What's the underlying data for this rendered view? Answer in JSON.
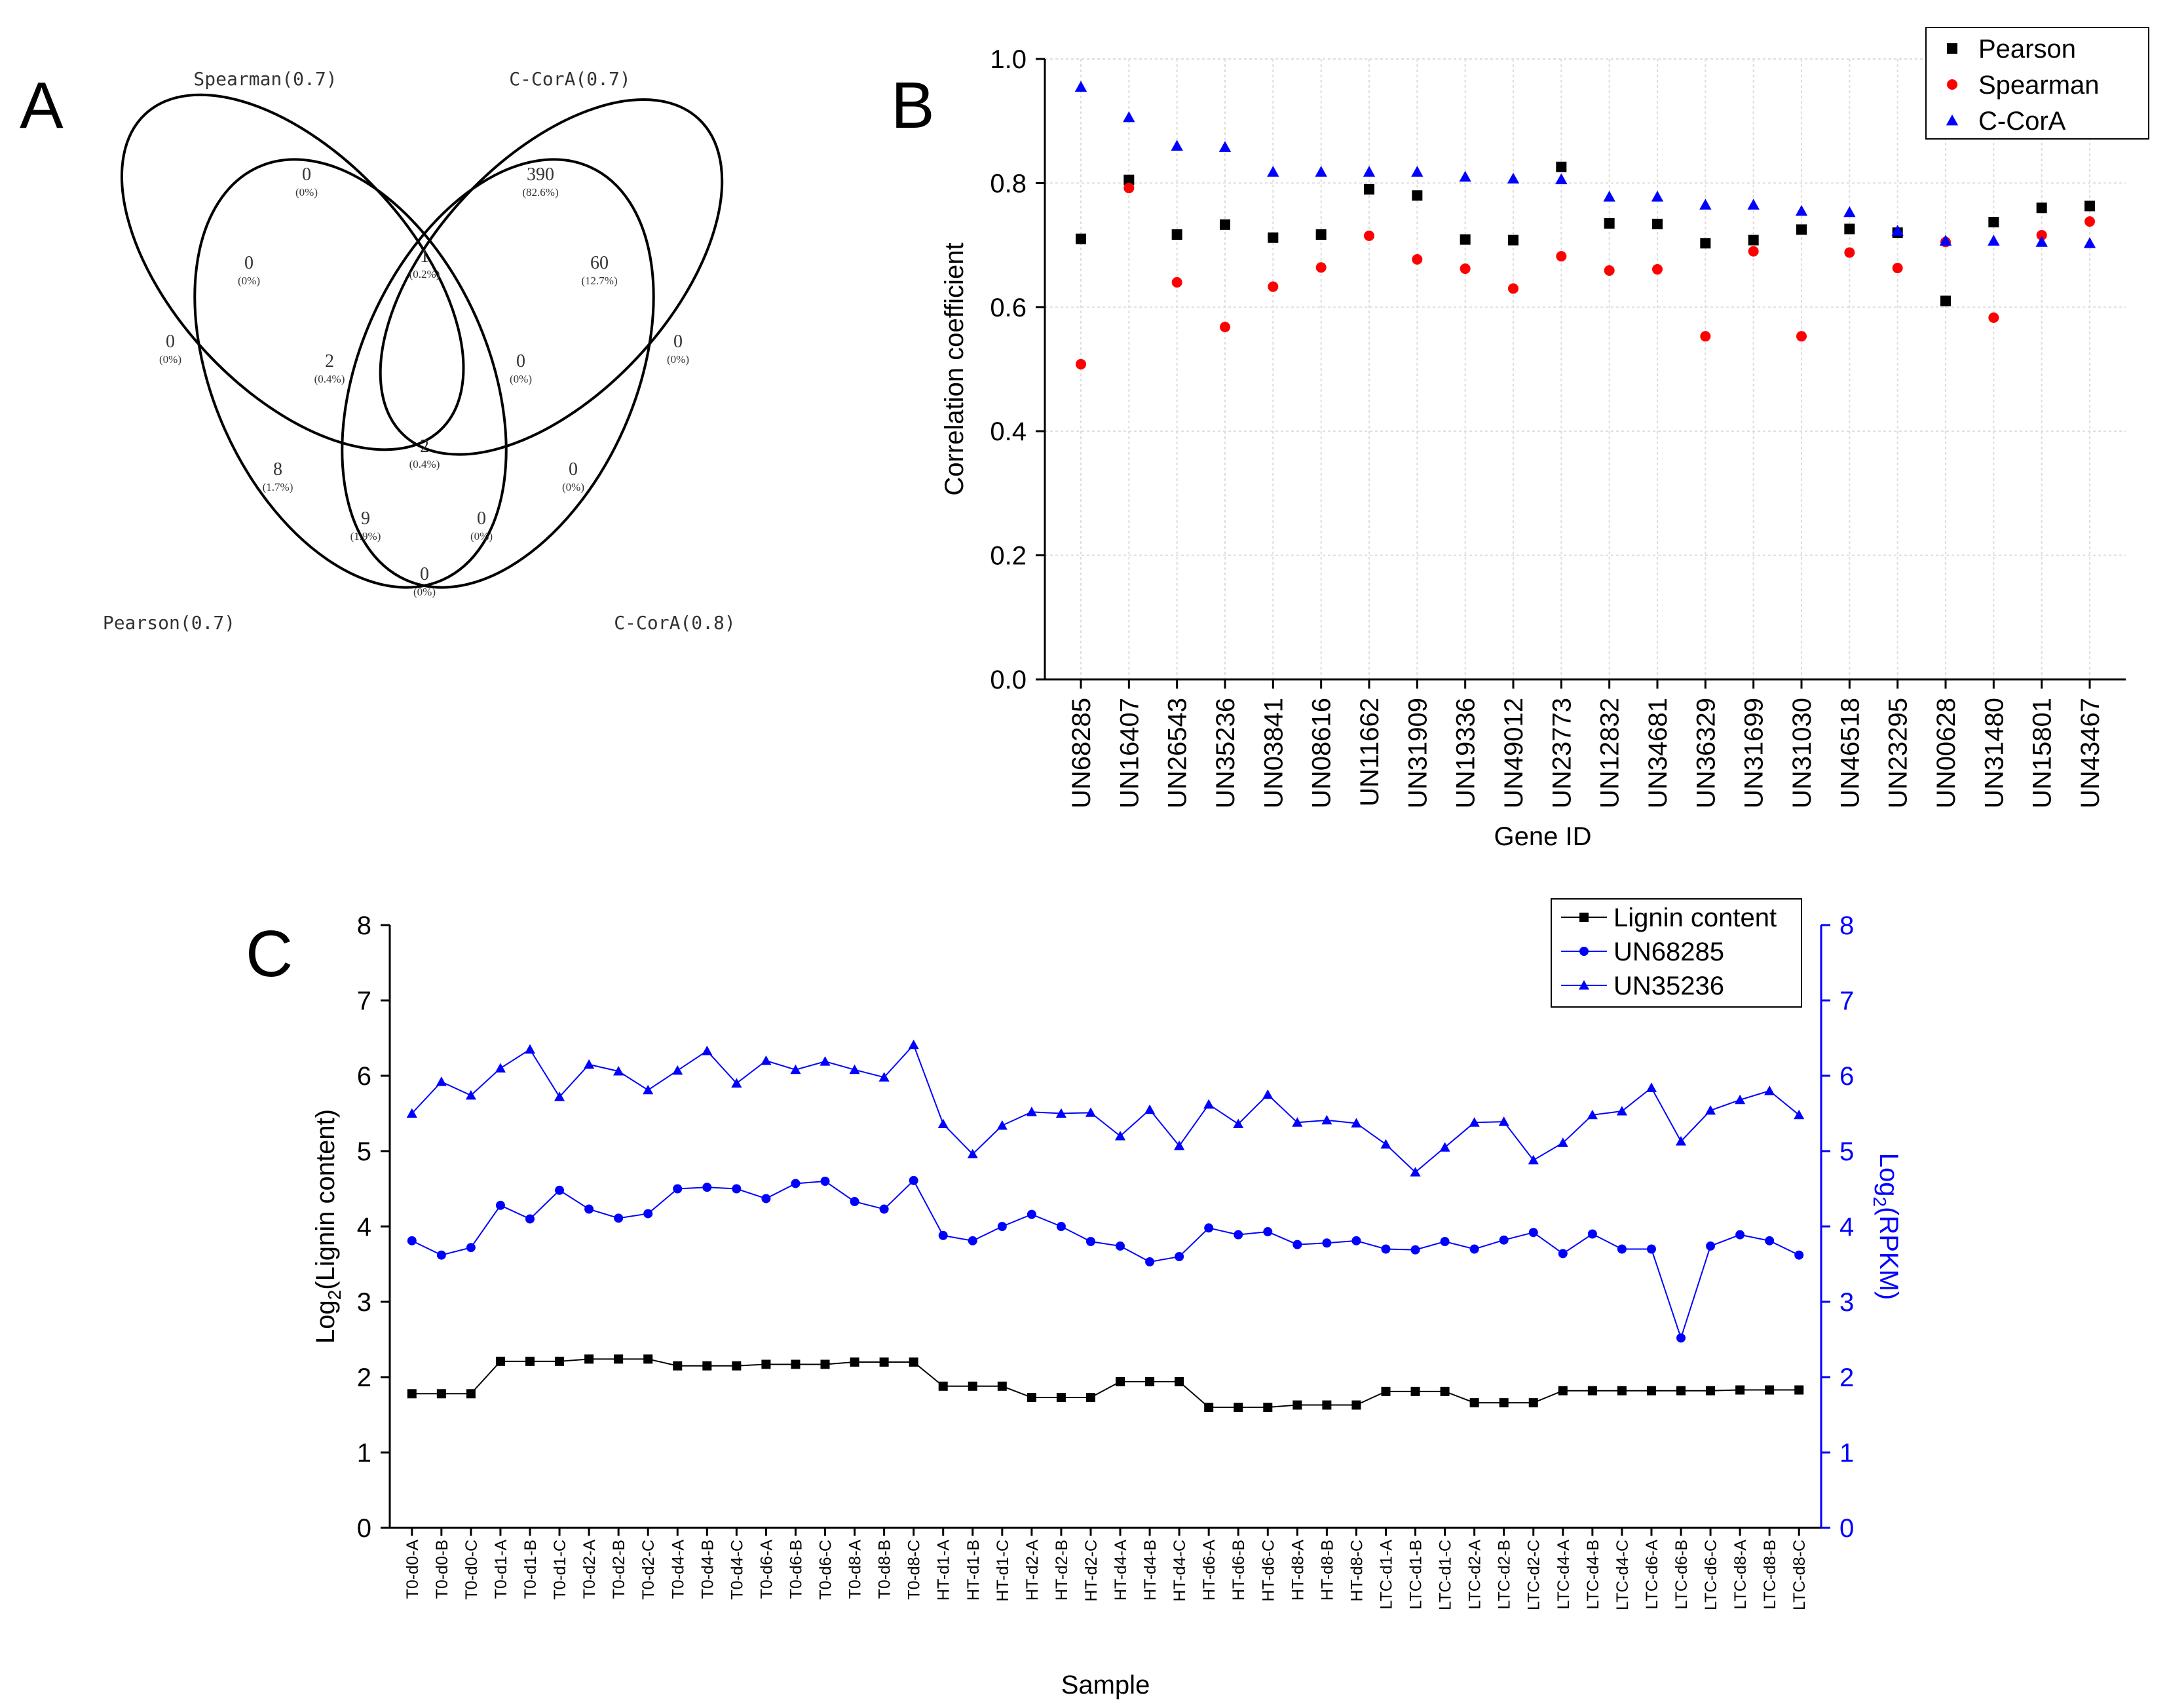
{
  "panels": {
    "a": "A",
    "b": "B",
    "c": "C"
  },
  "venn": {
    "sets": [
      "Spearman(0.7)",
      "C-CorA(0.7)",
      "Pearson(0.7)",
      "C-CorA(0.8)"
    ],
    "regions": [
      {
        "id": "spearman-only",
        "count": "0",
        "pct": "(0%)"
      },
      {
        "id": "ccora07-only",
        "count": "390",
        "pct": "(82.6%)"
      },
      {
        "id": "pearson-only",
        "count": "0",
        "pct": "(0%)"
      },
      {
        "id": "ccora08-only",
        "count": "0",
        "pct": "(0%)"
      },
      {
        "id": "pearson-spearman",
        "count": "0",
        "pct": "(0%)"
      },
      {
        "id": "spearman-ccora07",
        "count": "1",
        "pct": "(0.2%)"
      },
      {
        "id": "ccora07-ccora08",
        "count": "60",
        "pct": "(12.7%)"
      },
      {
        "id": "pearson-spearman-ccora07",
        "count": "2",
        "pct": "(0.4%)"
      },
      {
        "id": "spearman-ccora07-ccora08",
        "count": "0",
        "pct": "(0%)"
      },
      {
        "id": "pearson-spearman-ccora08",
        "count": "8",
        "pct": "(1.7%)"
      },
      {
        "id": "all-four",
        "count": "2",
        "pct": "(0.4%)"
      },
      {
        "id": "pearson-ccora07-ccora08",
        "count": "0",
        "pct": "(0%)"
      },
      {
        "id": "pearson-ccora08",
        "count": "9",
        "pct": "(1.9%)"
      },
      {
        "id": "spearman-ccora08",
        "count": "0",
        "pct": "(0%)"
      },
      {
        "id": "pearson-ccora07",
        "count": "0",
        "pct": "(0%)"
      }
    ]
  },
  "chart_data": [
    {
      "type": "scatter",
      "panel": "B",
      "xlabel": "Gene ID",
      "ylabel": "Correlation coefficient",
      "ylim": [
        0.0,
        1.0
      ],
      "yticks": [
        "0.0",
        "0.2",
        "0.4",
        "0.6",
        "0.8",
        "1.0"
      ],
      "grid": true,
      "legend_position": "top-right",
      "categories": [
        "UN68285",
        "UN16407",
        "UN26543",
        "UN35236",
        "UN03841",
        "UN08616",
        "UN11662",
        "UN31909",
        "UN19336",
        "UN49012",
        "UN23773",
        "UN12832",
        "UN34681",
        "UN36329",
        "UN31699",
        "UN31030",
        "UN46518",
        "UN23295",
        "UN00628",
        "UN31480",
        "UN15801",
        "UN43467"
      ],
      "series": [
        {
          "name": "Pearson",
          "marker": "square",
          "color": "#000000",
          "values": [
            0.71,
            0.805,
            0.717,
            0.733,
            0.712,
            0.717,
            0.79,
            0.78,
            0.709,
            0.708,
            0.826,
            0.735,
            0.734,
            0.703,
            0.708,
            0.725,
            0.726,
            0.72,
            0.61,
            0.737,
            0.76,
            0.763
          ]
        },
        {
          "name": "Spearman",
          "marker": "circle",
          "color": "#ff0000",
          "values": [
            0.508,
            0.792,
            0.64,
            0.568,
            0.633,
            0.664,
            0.715,
            0.677,
            0.662,
            0.63,
            0.682,
            0.659,
            0.661,
            0.553,
            0.69,
            0.553,
            0.688,
            0.663,
            0.705,
            0.583,
            0.716,
            0.738
          ]
        },
        {
          "name": "C-CorA",
          "marker": "triangle",
          "color": "#0000ff",
          "values": [
            0.955,
            0.906,
            0.86,
            0.858,
            0.818,
            0.818,
            0.818,
            0.818,
            0.81,
            0.807,
            0.806,
            0.778,
            0.778,
            0.765,
            0.765,
            0.755,
            0.753,
            0.723,
            0.707,
            0.707,
            0.705,
            0.703
          ]
        }
      ]
    },
    {
      "type": "line",
      "panel": "C",
      "xlabel": "Sample",
      "ylabel_left": "Log2(Lignin content)",
      "ylabel_right": "Log2(RPKM)",
      "ylabel_left_parts": {
        "pre": "Log",
        "sub": "2",
        "post": "(Lignin content)"
      },
      "ylabel_right_parts": {
        "pre": "Log",
        "sub": "2",
        "post": "(RPKM)"
      },
      "ylim": [
        0,
        8
      ],
      "yticks": [
        "0",
        "1",
        "2",
        "3",
        "4",
        "5",
        "6",
        "7",
        "8"
      ],
      "legend_position": "top-right",
      "categories": [
        "T0-d0-A",
        "T0-d0-B",
        "T0-d0-C",
        "T0-d1-A",
        "T0-d1-B",
        "T0-d1-C",
        "T0-d2-A",
        "T0-d2-B",
        "T0-d2-C",
        "T0-d4-A",
        "T0-d4-B",
        "T0-d4-C",
        "T0-d6-A",
        "T0-d6-B",
        "T0-d6-C",
        "T0-d8-A",
        "T0-d8-B",
        "T0-d8-C",
        "HT-d1-A",
        "HT-d1-B",
        "HT-d1-C",
        "HT-d2-A",
        "HT-d2-B",
        "HT-d2-C",
        "HT-d4-A",
        "HT-d4-B",
        "HT-d4-C",
        "HT-d6-A",
        "HT-d6-B",
        "HT-d6-C",
        "HT-d8-A",
        "HT-d8-B",
        "HT-d8-C",
        "LTC-d1-A",
        "LTC-d1-B",
        "LTC-d1-C",
        "LTC-d2-A",
        "LTC-d2-B",
        "LTC-d2-C",
        "LTC-d4-A",
        "LTC-d4-B",
        "LTC-d4-C",
        "LTC-d6-A",
        "LTC-d6-B",
        "LTC-d6-C",
        "LTC-d8-A",
        "LTC-d8-B",
        "LTC-d8-C"
      ],
      "series": [
        {
          "name": "Lignin content",
          "marker": "square",
          "color": "#000000",
          "axis": "left",
          "values": [
            1.78,
            1.78,
            1.78,
            2.21,
            2.21,
            2.21,
            2.24,
            2.24,
            2.24,
            2.15,
            2.15,
            2.15,
            2.17,
            2.17,
            2.17,
            2.2,
            2.2,
            2.2,
            1.88,
            1.88,
            1.88,
            1.73,
            1.73,
            1.73,
            1.94,
            1.94,
            1.94,
            1.6,
            1.6,
            1.6,
            1.63,
            1.63,
            1.63,
            1.81,
            1.81,
            1.81,
            1.66,
            1.66,
            1.66,
            1.82,
            1.82,
            1.82,
            1.82,
            1.82,
            1.82,
            1.83,
            1.83,
            1.83
          ]
        },
        {
          "name": "UN68285",
          "marker": "circle",
          "color": "#0000ff",
          "axis": "right",
          "values": [
            3.81,
            3.62,
            3.72,
            4.28,
            4.1,
            4.48,
            4.23,
            4.11,
            4.17,
            4.5,
            4.52,
            4.5,
            4.37,
            4.57,
            4.6,
            4.33,
            4.23,
            4.61,
            3.88,
            3.81,
            4.0,
            4.16,
            4.0,
            3.8,
            3.74,
            3.53,
            3.6,
            3.98,
            3.89,
            3.93,
            3.76,
            3.78,
            3.81,
            3.7,
            3.69,
            3.8,
            3.7,
            3.82,
            3.92,
            3.64,
            3.9,
            3.7,
            3.7,
            2.52,
            3.74,
            3.89,
            3.81,
            3.62
          ]
        },
        {
          "name": "UN35236",
          "marker": "triangle",
          "color": "#0000ff",
          "axis": "right",
          "values": [
            5.5,
            5.92,
            5.74,
            6.1,
            6.35,
            5.72,
            6.15,
            6.06,
            5.81,
            6.07,
            6.33,
            5.9,
            6.2,
            6.08,
            6.19,
            6.08,
            5.98,
            6.41,
            5.36,
            4.96,
            5.34,
            5.52,
            5.5,
            5.51,
            5.2,
            5.55,
            5.07,
            5.62,
            5.36,
            5.75,
            5.38,
            5.41,
            5.37,
            5.09,
            4.72,
            5.05,
            5.38,
            5.39,
            4.88,
            5.11,
            5.48,
            5.53,
            5.84,
            5.13,
            5.54,
            5.68,
            5.8,
            5.48
          ]
        }
      ]
    }
  ]
}
